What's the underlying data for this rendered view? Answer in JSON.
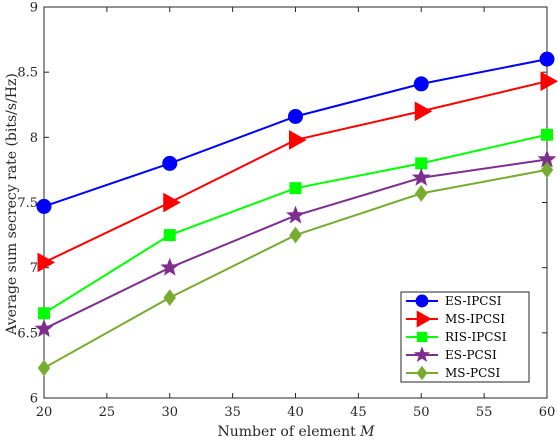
{
  "chart_data": {
    "type": "line",
    "title": "",
    "xlabel": "Number of element",
    "xlabel_var": "M",
    "ylabel": "Average sum secrecy rate (bits/s/Hz)",
    "x": [
      20,
      30,
      40,
      50,
      60
    ],
    "xlim": [
      20,
      60
    ],
    "ylim": [
      6,
      9
    ],
    "xticks": [
      20,
      25,
      30,
      35,
      40,
      45,
      50,
      55,
      60
    ],
    "yticks": [
      6,
      6.5,
      7,
      7.5,
      8,
      8.5,
      9
    ],
    "grid": false,
    "legend_position": "bottom-right",
    "series": [
      {
        "name": "ES-IPCSI",
        "values": [
          7.47,
          7.8,
          8.16,
          8.41,
          8.6
        ],
        "color": "#0000ff",
        "marker": "circle"
      },
      {
        "name": "MS-IPCSI",
        "values": [
          7.04,
          7.5,
          7.98,
          8.2,
          8.43
        ],
        "color": "#ff0000",
        "marker": "triangle-right"
      },
      {
        "name": "RIS-IPCSI",
        "values": [
          6.65,
          7.25,
          7.61,
          7.8,
          8.02
        ],
        "color": "#00ff00",
        "marker": "square"
      },
      {
        "name": "ES-PCSI",
        "values": [
          6.53,
          7.0,
          7.4,
          7.69,
          7.83
        ],
        "color": "#7e2f8e",
        "marker": "star"
      },
      {
        "name": "MS-PCSI",
        "values": [
          6.23,
          6.77,
          7.25,
          7.57,
          7.75
        ],
        "color": "#77ac30",
        "marker": "diamond"
      }
    ]
  }
}
